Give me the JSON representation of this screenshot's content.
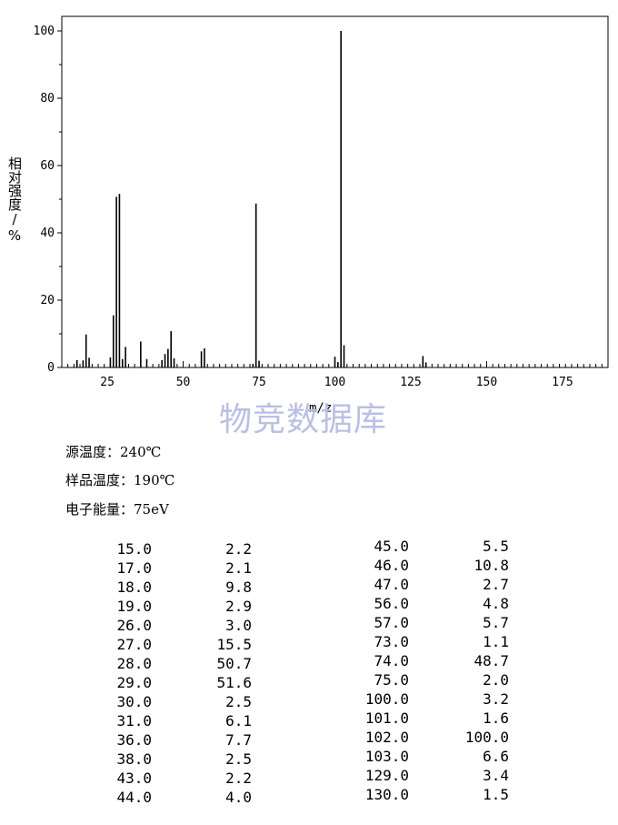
{
  "chart_data": {
    "type": "bar",
    "xlabel": "m/z",
    "ylabel": "相对强度/%",
    "xlim": [
      10,
      190
    ],
    "ylim": [
      0,
      100
    ],
    "xticks": [
      "25",
      "50",
      "75",
      "100",
      "125",
      "150",
      "175"
    ],
    "yticks": [
      "0",
      "20",
      "40",
      "60",
      "80",
      "100"
    ],
    "x": [
      15,
      17,
      18,
      19,
      26,
      27,
      28,
      29,
      30,
      31,
      36,
      38,
      43,
      44,
      45,
      46,
      47,
      56,
      57,
      73,
      74,
      75,
      100,
      101,
      102,
      103,
      129,
      130
    ],
    "values": [
      2.2,
      2.1,
      9.8,
      2.9,
      3.0,
      15.5,
      50.7,
      51.6,
      2.5,
      6.1,
      7.7,
      2.5,
      2.2,
      4.0,
      5.5,
      10.8,
      2.7,
      4.8,
      5.7,
      1.1,
      48.7,
      2.0,
      3.2,
      1.6,
      100.0,
      6.6,
      3.4,
      1.5
    ]
  },
  "watermark": "物竞数据库",
  "info": {
    "source_temp": "源温度：240℃",
    "sample_temp": "样品温度：190℃",
    "electron_energy": "电子能量：75eV"
  },
  "peak_table": {
    "left": [
      [
        "15.0",
        "2.2"
      ],
      [
        "17.0",
        "2.1"
      ],
      [
        "18.0",
        "9.8"
      ],
      [
        "19.0",
        "2.9"
      ],
      [
        "26.0",
        "3.0"
      ],
      [
        "27.0",
        "15.5"
      ],
      [
        "28.0",
        "50.7"
      ],
      [
        "29.0",
        "51.6"
      ],
      [
        "30.0",
        "2.5"
      ],
      [
        "31.0",
        "6.1"
      ],
      [
        "36.0",
        "7.7"
      ],
      [
        "38.0",
        "2.5"
      ],
      [
        "43.0",
        "2.2"
      ],
      [
        "44.0",
        "4.0"
      ]
    ],
    "right": [
      [
        "45.0",
        "5.5"
      ],
      [
        "46.0",
        "10.8"
      ],
      [
        "47.0",
        "2.7"
      ],
      [
        "56.0",
        "4.8"
      ],
      [
        "57.0",
        "5.7"
      ],
      [
        "73.0",
        "1.1"
      ],
      [
        "74.0",
        "48.7"
      ],
      [
        "75.0",
        "2.0"
      ],
      [
        "100.0",
        "3.2"
      ],
      [
        "101.0",
        "1.6"
      ],
      [
        "102.0",
        "100.0"
      ],
      [
        "103.0",
        "6.6"
      ],
      [
        "129.0",
        "3.4"
      ],
      [
        "130.0",
        "1.5"
      ]
    ]
  }
}
